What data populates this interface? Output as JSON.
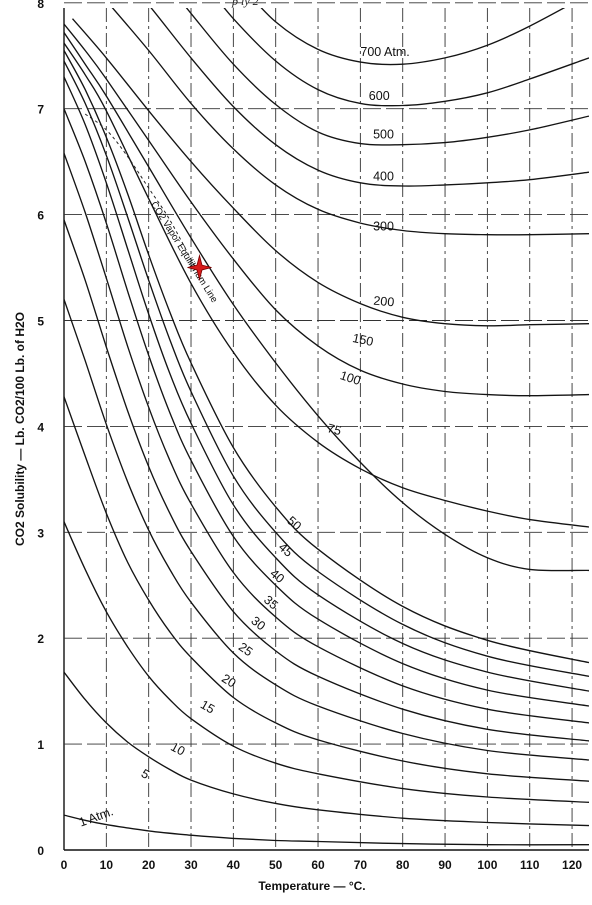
{
  "header_fragment": "p     ly    2",
  "chart_data": {
    "type": "line",
    "xlabel": "Temperature — °C.",
    "ylabel": "CO2 Solubility — Lb. CO2/100 Lb. of H2O",
    "xlim": [
      0,
      124
    ],
    "ylim": [
      0,
      8.2
    ],
    "x_ticks": [
      "0",
      "10",
      "20",
      "30",
      "40",
      "50",
      "60",
      "70",
      "80",
      "90",
      "100",
      "110",
      "120"
    ],
    "y_ticks": [
      "0",
      "1",
      "2",
      "3",
      "4",
      "5",
      "6",
      "7",
      "8"
    ],
    "grid": true,
    "equilibrium_line": {
      "label": "CO2 Vapor Equilibrium Line",
      "x": [
        5,
        10,
        15,
        20,
        25,
        31
      ],
      "y": [
        6.95,
        6.8,
        6.55,
        6.25,
        5.95,
        5.5
      ]
    },
    "marker": {
      "shape": "red-star",
      "x": 32,
      "y": 5.5
    },
    "series": [
      {
        "name": "1 Atm.",
        "x": [
          0,
          5,
          10,
          20,
          30,
          40,
          50,
          60,
          80,
          100,
          124
        ],
        "y": [
          0.33,
          0.28,
          0.24,
          0.18,
          0.14,
          0.11,
          0.09,
          0.08,
          0.06,
          0.05,
          0.05
        ]
      },
      {
        "name": "5",
        "x": [
          0,
          5,
          10,
          15,
          20,
          25,
          30,
          40,
          50,
          60,
          80,
          100,
          124
        ],
        "y": [
          1.68,
          1.42,
          1.2,
          1.02,
          0.88,
          0.76,
          0.66,
          0.53,
          0.44,
          0.38,
          0.3,
          0.26,
          0.23
        ]
      },
      {
        "name": "10",
        "x": [
          0,
          5,
          10,
          15,
          20,
          25,
          30,
          40,
          50,
          60,
          80,
          100,
          124
        ],
        "y": [
          3.1,
          2.65,
          2.25,
          1.92,
          1.64,
          1.42,
          1.24,
          0.98,
          0.82,
          0.72,
          0.58,
          0.5,
          0.45
        ]
      },
      {
        "name": "15",
        "x": [
          0,
          5,
          10,
          15,
          20,
          25,
          30,
          40,
          50,
          60,
          80,
          100,
          124
        ],
        "y": [
          4.28,
          3.72,
          3.18,
          2.72,
          2.36,
          2.06,
          1.82,
          1.44,
          1.2,
          1.04,
          0.84,
          0.72,
          0.65
        ]
      },
      {
        "name": "20",
        "x": [
          0,
          5,
          10,
          15,
          20,
          25,
          30,
          40,
          50,
          60,
          80,
          100,
          124
        ],
        "y": [
          5.2,
          4.62,
          4.02,
          3.48,
          3.02,
          2.65,
          2.34,
          1.86,
          1.56,
          1.36,
          1.1,
          0.94,
          0.85
        ]
      },
      {
        "name": "25",
        "x": [
          0,
          5,
          10,
          15,
          20,
          25,
          30,
          40,
          50,
          60,
          80,
          100,
          124
        ],
        "y": [
          5.95,
          5.38,
          4.75,
          4.15,
          3.62,
          3.18,
          2.82,
          2.25,
          1.88,
          1.64,
          1.33,
          1.14,
          1.03
        ]
      },
      {
        "name": "30",
        "x": [
          0,
          5,
          10,
          15,
          20,
          25,
          30,
          40,
          50,
          60,
          80,
          100,
          124
        ],
        "y": [
          6.58,
          6.02,
          5.4,
          4.76,
          4.18,
          3.68,
          3.27,
          2.62,
          2.2,
          1.92,
          1.55,
          1.33,
          1.2
        ]
      },
      {
        "name": "35",
        "x": [
          0,
          5,
          10,
          15,
          20,
          25,
          30,
          40,
          50,
          60,
          80,
          100,
          124
        ],
        "y": [
          7.0,
          6.5,
          5.92,
          5.28,
          4.67,
          4.13,
          3.68,
          2.96,
          2.5,
          2.18,
          1.76,
          1.51,
          1.36
        ]
      },
      {
        "name": "40",
        "x": [
          0,
          5,
          10,
          15,
          20,
          25,
          30,
          40,
          50,
          60,
          80,
          100,
          124
        ],
        "y": [
          7.3,
          6.85,
          6.3,
          5.68,
          5.06,
          4.5,
          4.03,
          3.26,
          2.76,
          2.41,
          1.95,
          1.68,
          1.5
        ]
      },
      {
        "name": "45",
        "x": [
          0,
          5,
          10,
          15,
          20,
          25,
          30,
          40,
          50,
          60,
          80,
          100,
          124
        ],
        "y": [
          7.45,
          7.05,
          6.56,
          5.98,
          5.38,
          4.82,
          4.33,
          3.53,
          3.0,
          2.63,
          2.13,
          1.83,
          1.64
        ]
      },
      {
        "name": "50",
        "x": [
          0,
          5,
          10,
          15,
          20,
          25,
          30,
          40,
          50,
          60,
          80,
          100,
          124
        ],
        "y": [
          7.55,
          7.18,
          6.73,
          6.2,
          5.62,
          5.08,
          4.6,
          3.8,
          3.24,
          2.84,
          2.3,
          1.98,
          1.77
        ]
      },
      {
        "name": "75",
        "x": [
          0,
          5,
          10,
          20,
          30,
          40,
          50,
          60,
          70,
          80,
          90,
          100,
          110,
          124
        ],
        "y": [
          7.62,
          7.32,
          6.98,
          6.15,
          5.35,
          4.7,
          4.2,
          3.85,
          3.6,
          3.42,
          3.3,
          3.2,
          3.12,
          3.05
        ]
      },
      {
        "name": "100",
        "x": [
          0,
          5,
          10,
          20,
          30,
          40,
          50,
          60,
          70,
          80,
          90,
          100,
          110,
          124
        ],
        "y": [
          7.72,
          7.42,
          7.12,
          6.45,
          5.78,
          5.15,
          4.6,
          4.1,
          3.66,
          3.28,
          2.98,
          2.76,
          2.65,
          2.64
        ]
      },
      {
        "name": "150",
        "x": [
          0,
          5,
          10,
          20,
          30,
          40,
          50,
          60,
          70,
          80,
          90,
          100,
          110,
          124
        ],
        "y": [
          7.8,
          7.55,
          7.28,
          6.7,
          6.12,
          5.58,
          5.1,
          4.76,
          4.53,
          4.4,
          4.33,
          4.3,
          4.29,
          4.3
        ]
      },
      {
        "name": "200",
        "x": [
          2,
          10,
          20,
          30,
          40,
          50,
          60,
          70,
          80,
          90,
          100,
          110,
          124
        ],
        "y": [
          7.85,
          7.48,
          6.98,
          6.5,
          6.06,
          5.66,
          5.36,
          5.16,
          5.03,
          4.97,
          4.95,
          4.96,
          4.97
        ]
      },
      {
        "name": "300",
        "x": [
          6,
          10,
          20,
          30,
          40,
          50,
          60,
          70,
          80,
          90,
          100,
          110,
          124
        ],
        "y": [
          8.2,
          8.02,
          7.55,
          7.05,
          6.62,
          6.28,
          6.05,
          5.92,
          5.85,
          5.82,
          5.81,
          5.81,
          5.82
        ]
      },
      {
        "name": "400",
        "x": [
          15,
          20,
          30,
          40,
          50,
          60,
          70,
          80,
          90,
          100,
          110,
          124
        ],
        "y": [
          8.2,
          7.98,
          7.48,
          7.02,
          6.66,
          6.42,
          6.3,
          6.27,
          6.28,
          6.3,
          6.33,
          6.4
        ]
      },
      {
        "name": "500",
        "x": [
          24,
          30,
          40,
          50,
          60,
          70,
          80,
          90,
          100,
          110,
          124
        ],
        "y": [
          8.2,
          7.9,
          7.42,
          7.04,
          6.78,
          6.67,
          6.66,
          6.68,
          6.73,
          6.8,
          6.93
        ]
      },
      {
        "name": "600",
        "x": [
          33,
          40,
          50,
          60,
          70,
          80,
          90,
          100,
          110,
          124
        ],
        "y": [
          8.2,
          7.85,
          7.45,
          7.18,
          7.05,
          7.03,
          7.07,
          7.15,
          7.28,
          7.48
        ]
      },
      {
        "name": "700 Atm.",
        "x": [
          41,
          50,
          60,
          70,
          80,
          90,
          100,
          110,
          124
        ],
        "y": [
          8.2,
          7.82,
          7.56,
          7.44,
          7.42,
          7.48,
          7.6,
          7.78,
          8.08
        ]
      }
    ]
  }
}
